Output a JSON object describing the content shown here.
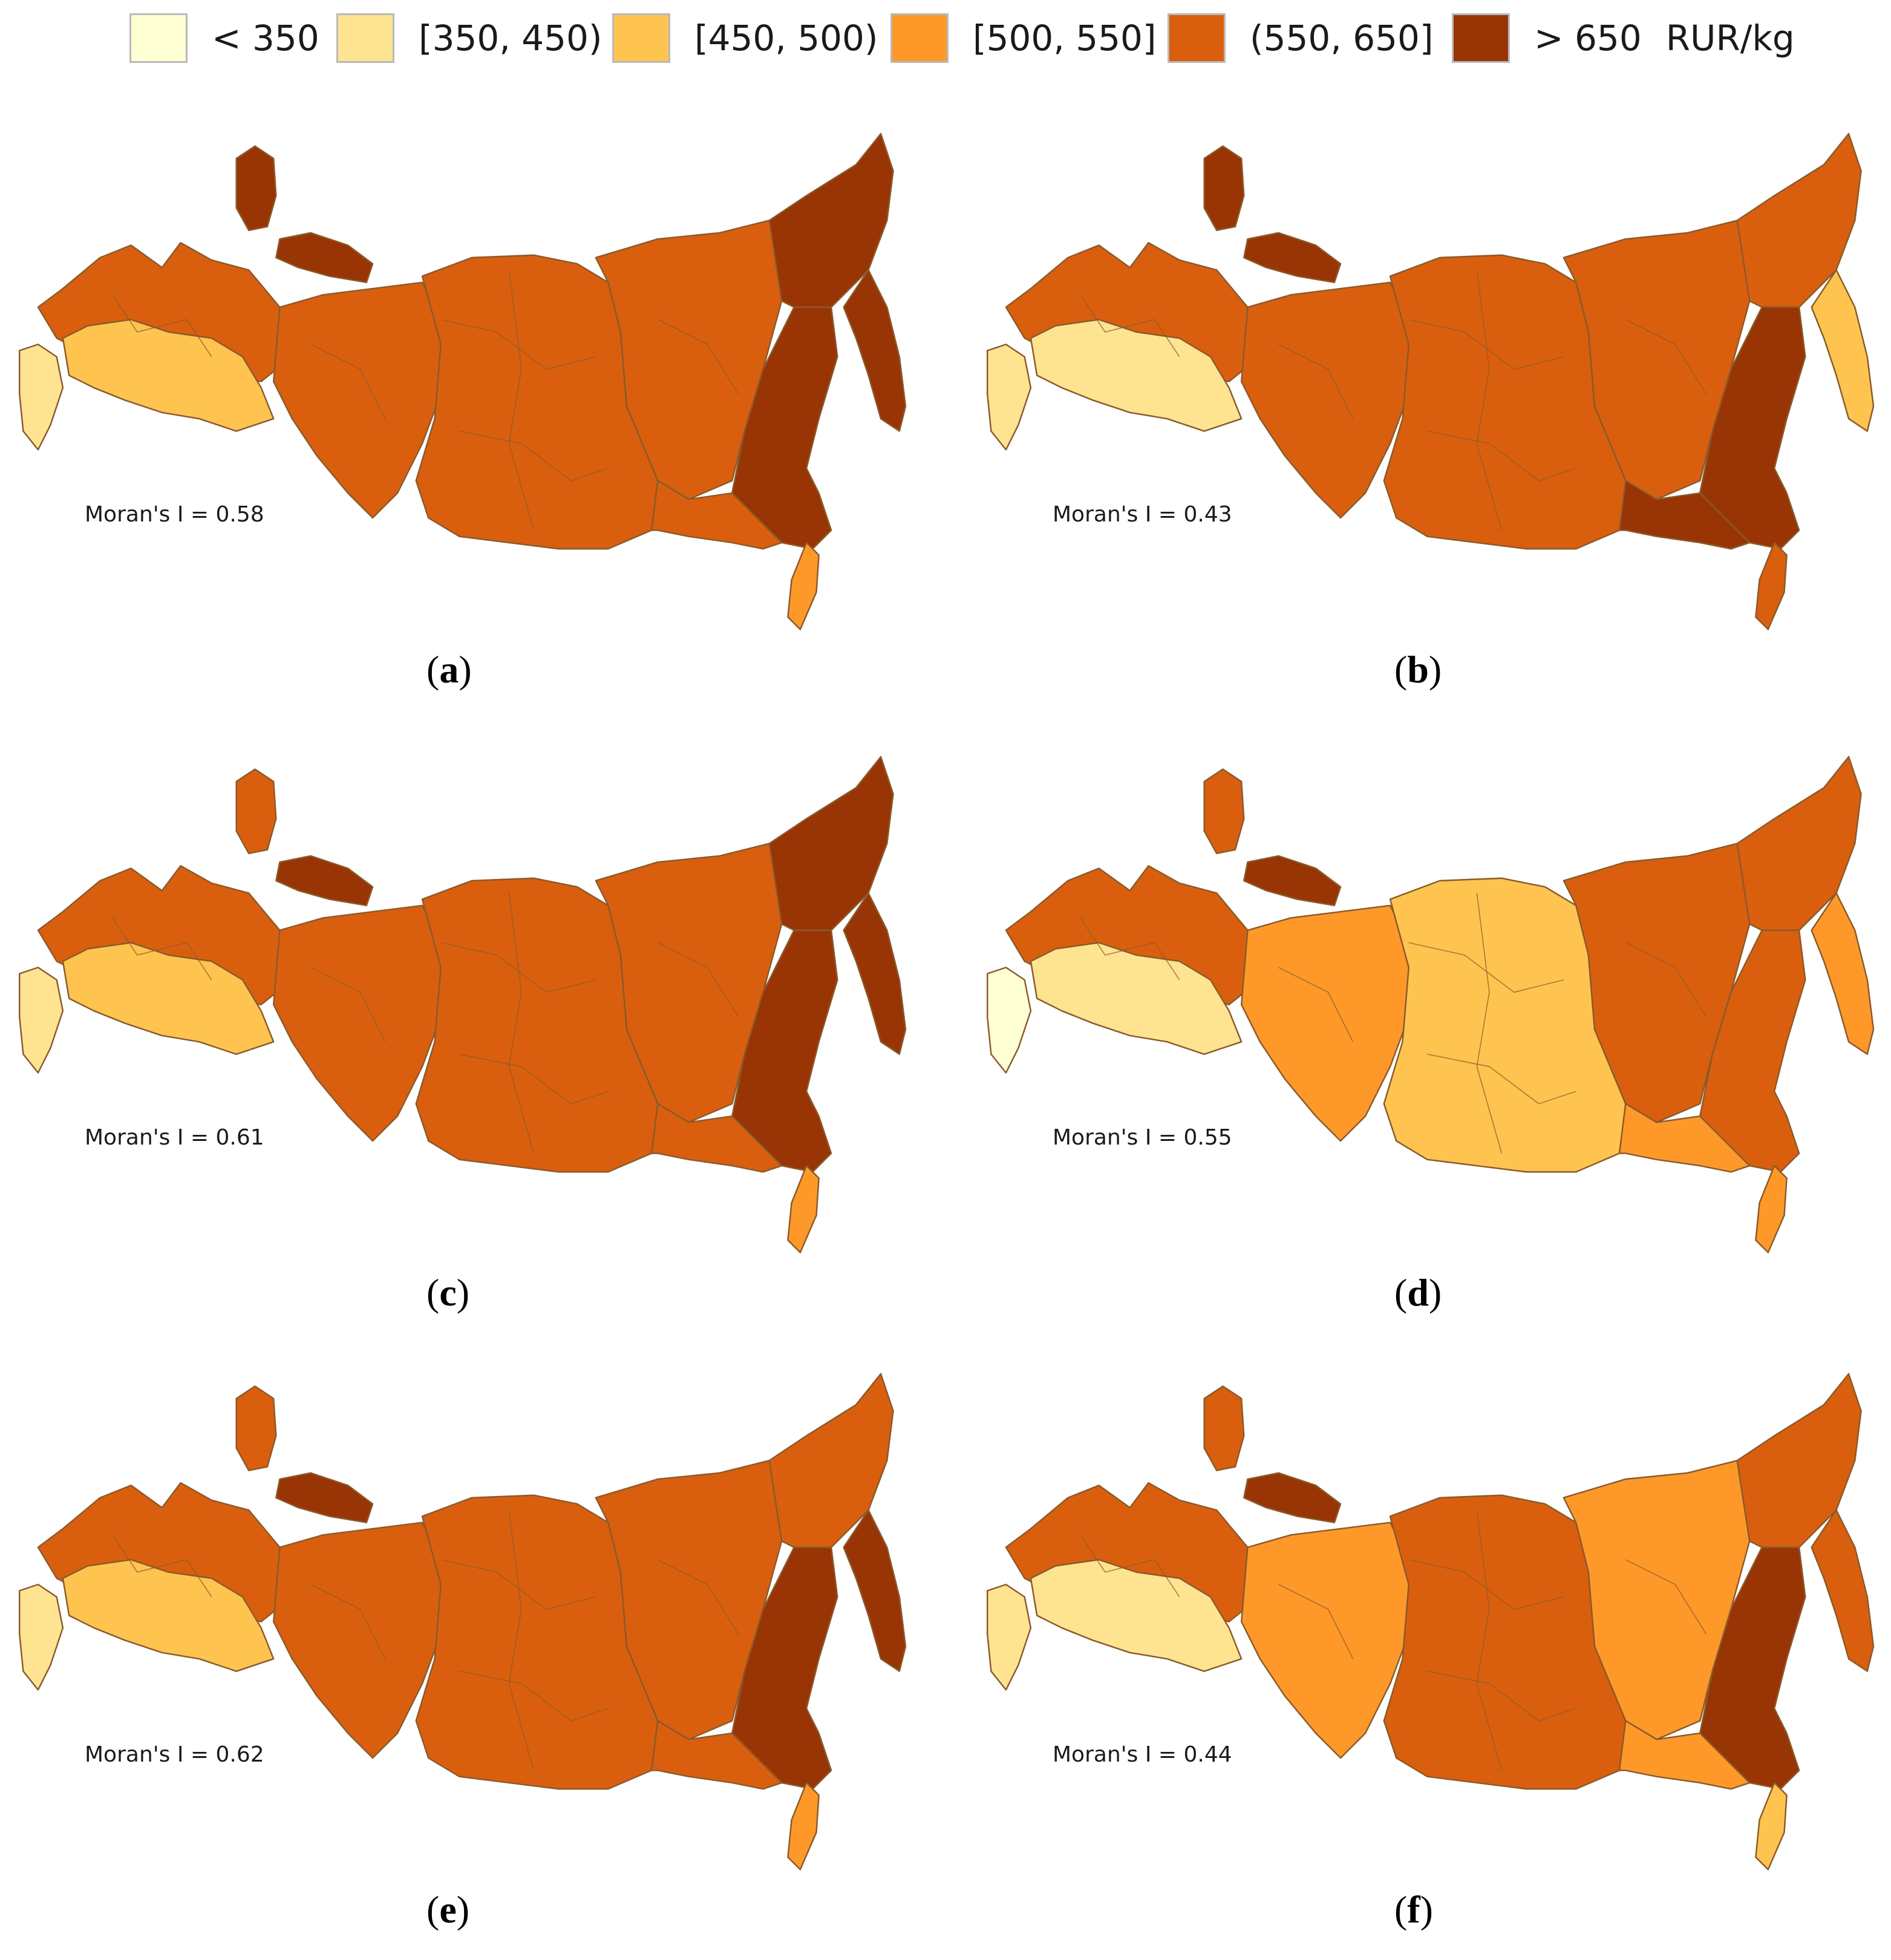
{
  "legend": {
    "unit": "RUR/kg",
    "classes": [
      {
        "label": "< 350",
        "color": "#ffffd4"
      },
      {
        "label": "[350, 450)",
        "color": "#fee391"
      },
      {
        "label": "[450, 500)",
        "color": "#fec44f"
      },
      {
        "label": "[500, 550]",
        "color": "#fe9929"
      },
      {
        "label": "(550, 650]",
        "color": "#d95f0e"
      },
      {
        "label": "> 650",
        "color": "#993404"
      }
    ]
  },
  "panels": [
    {
      "letter": "a",
      "moran": "Moran's I = 0.58",
      "classes": {
        "west": 4,
        "volga": 2,
        "south": 1,
        "urals": 4,
        "siberia": 4,
        "yakutia": 4,
        "chukotka": 5,
        "kamchatka": 5,
        "khabarovsk": 5,
        "amur": 4,
        "sakhalin": 3,
        "nenets": 5,
        "murmansk": 5
      }
    },
    {
      "letter": "b",
      "moran": "Moran's I = 0.43",
      "classes": {
        "west": 4,
        "volga": 1,
        "south": 1,
        "urals": 4,
        "siberia": 4,
        "yakutia": 4,
        "chukotka": 4,
        "kamchatka": 2,
        "khabarovsk": 5,
        "amur": 5,
        "sakhalin": 4,
        "nenets": 5,
        "murmansk": 5
      }
    },
    {
      "letter": "c",
      "moran": "Moran's I = 0.61",
      "classes": {
        "west": 4,
        "volga": 2,
        "south": 1,
        "urals": 4,
        "siberia": 4,
        "yakutia": 4,
        "chukotka": 5,
        "kamchatka": 5,
        "khabarovsk": 5,
        "amur": 4,
        "sakhalin": 3,
        "nenets": 5,
        "murmansk": 4
      }
    },
    {
      "letter": "d",
      "moran": "Moran's I = 0.55",
      "classes": {
        "west": 4,
        "volga": 1,
        "south": 0,
        "urals": 3,
        "siberia": 2,
        "yakutia": 4,
        "chukotka": 4,
        "kamchatka": 3,
        "khabarovsk": 4,
        "amur": 3,
        "sakhalin": 3,
        "nenets": 5,
        "murmansk": 4
      }
    },
    {
      "letter": "e",
      "moran": "Moran's I = 0.62",
      "classes": {
        "west": 4,
        "volga": 2,
        "south": 1,
        "urals": 4,
        "siberia": 4,
        "yakutia": 4,
        "chukotka": 4,
        "kamchatka": 5,
        "khabarovsk": 5,
        "amur": 4,
        "sakhalin": 3,
        "nenets": 5,
        "murmansk": 4
      }
    },
    {
      "letter": "f",
      "moran": "Moran's I = 0.44",
      "classes": {
        "west": 4,
        "volga": 1,
        "south": 1,
        "urals": 3,
        "siberia": 4,
        "yakutia": 3,
        "chukotka": 4,
        "kamchatka": 4,
        "khabarovsk": 5,
        "amur": 3,
        "sakhalin": 2,
        "nenets": 5,
        "murmansk": 4
      }
    }
  ]
}
